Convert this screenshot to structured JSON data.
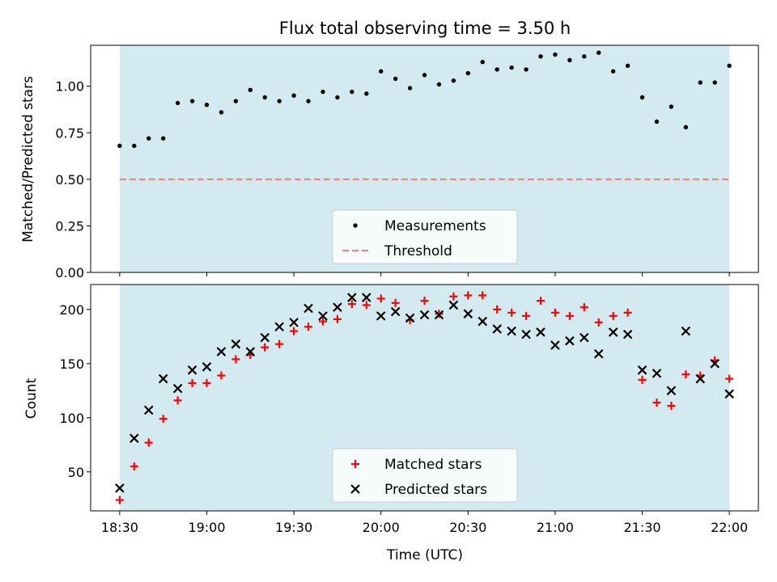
{
  "title": "Flux total observing time = 3.50 h",
  "chart_data": [
    {
      "type": "scatter",
      "panel": "top",
      "title": "Flux total observing time = 3.50 h",
      "ylabel": "Matched/Predicted stars",
      "xlabel": "",
      "xlim": [
        "18:20",
        "22:10"
      ],
      "ylim": [
        0,
        1.22
      ],
      "yticks": [
        0.0,
        0.25,
        0.5,
        0.75,
        1.0
      ],
      "ytick_labels": [
        "0.00",
        "0.25",
        "0.50",
        "0.75",
        "1.00"
      ],
      "shaded_span": [
        "18:30",
        "22:00"
      ],
      "legend": {
        "placement": "lower-center",
        "entries": [
          "Measurements",
          "Threshold"
        ]
      },
      "threshold": 0.5,
      "series": [
        {
          "name": "Measurements",
          "marker": "dot",
          "color": "#000000",
          "x": [
            "18:30",
            "18:35",
            "18:40",
            "18:45",
            "18:50",
            "18:55",
            "19:00",
            "19:05",
            "19:10",
            "19:15",
            "19:20",
            "19:25",
            "19:30",
            "19:35",
            "19:40",
            "19:45",
            "19:50",
            "19:55",
            "20:00",
            "20:05",
            "20:10",
            "20:15",
            "20:20",
            "20:25",
            "20:30",
            "20:35",
            "20:40",
            "20:45",
            "20:50",
            "20:55",
            "21:00",
            "21:05",
            "21:10",
            "21:15",
            "21:20",
            "21:25",
            "21:30",
            "21:35",
            "21:40",
            "21:45",
            "21:50",
            "21:55",
            "22:00"
          ],
          "y": [
            0.68,
            0.68,
            0.72,
            0.72,
            0.91,
            0.92,
            0.9,
            0.86,
            0.92,
            0.98,
            0.94,
            0.92,
            0.95,
            0.92,
            0.97,
            0.94,
            0.97,
            0.96,
            1.08,
            1.04,
            0.99,
            1.06,
            1.01,
            1.03,
            1.07,
            1.13,
            1.09,
            1.1,
            1.09,
            1.16,
            1.17,
            1.14,
            1.16,
            1.18,
            1.08,
            1.11,
            0.94,
            0.81,
            0.89,
            0.78,
            1.02,
            1.02,
            1.11
          ]
        },
        {
          "name": "Threshold",
          "style": "dashed",
          "color": "#f08080",
          "x": [
            "18:30",
            "22:00"
          ],
          "y": [
            0.5,
            0.5
          ]
        }
      ]
    },
    {
      "type": "scatter",
      "panel": "bottom",
      "xlabel": "Time (UTC)",
      "ylabel": "Count",
      "xlim": [
        "18:20",
        "22:10"
      ],
      "ylim": [
        14,
        223
      ],
      "xticks": [
        "18:30",
        "19:00",
        "19:30",
        "20:00",
        "20:30",
        "21:00",
        "21:30",
        "22:00"
      ],
      "yticks": [
        50,
        100,
        150,
        200
      ],
      "ytick_labels": [
        "50",
        "100",
        "150",
        "200"
      ],
      "shaded_span": [
        "18:30",
        "22:00"
      ],
      "legend": {
        "placement": "lower-center",
        "entries": [
          "Matched stars",
          "Predicted stars"
        ]
      },
      "series": [
        {
          "name": "Matched stars",
          "marker": "plus",
          "color": "#ff0000",
          "x": [
            "18:30",
            "18:35",
            "18:40",
            "18:45",
            "18:50",
            "18:55",
            "19:00",
            "19:05",
            "19:10",
            "19:15",
            "19:20",
            "19:25",
            "19:30",
            "19:35",
            "19:40",
            "19:45",
            "19:50",
            "19:55",
            "20:00",
            "20:05",
            "20:10",
            "20:15",
            "20:20",
            "20:25",
            "20:30",
            "20:35",
            "20:40",
            "20:45",
            "20:50",
            "20:55",
            "21:00",
            "21:05",
            "21:10",
            "21:15",
            "21:20",
            "21:25",
            "21:30",
            "21:35",
            "21:40",
            "21:45",
            "21:50",
            "21:55",
            "22:00"
          ],
          "y": [
            24,
            55,
            77,
            99,
            116,
            132,
            132,
            139,
            154,
            158,
            165,
            168,
            180,
            184,
            189,
            191,
            205,
            204,
            210,
            206,
            190,
            208,
            196,
            212,
            213,
            213,
            200,
            197,
            194,
            208,
            197,
            194,
            202,
            188,
            194,
            197,
            135,
            114,
            111,
            140,
            139,
            153,
            136
          ]
        },
        {
          "name": "Predicted stars",
          "marker": "x",
          "color": "#000000",
          "x": [
            "18:30",
            "18:35",
            "18:40",
            "18:45",
            "18:50",
            "18:55",
            "19:00",
            "19:05",
            "19:10",
            "19:15",
            "19:20",
            "19:25",
            "19:30",
            "19:35",
            "19:40",
            "19:45",
            "19:50",
            "19:55",
            "20:00",
            "20:05",
            "20:10",
            "20:15",
            "20:20",
            "20:25",
            "20:30",
            "20:35",
            "20:40",
            "20:45",
            "20:50",
            "20:55",
            "21:00",
            "21:05",
            "21:10",
            "21:15",
            "21:20",
            "21:25",
            "21:30",
            "21:35",
            "21:40",
            "21:45",
            "21:50",
            "21:55",
            "22:00"
          ],
          "y": [
            35,
            81,
            107,
            136,
            127,
            144,
            147,
            161,
            168,
            161,
            174,
            184,
            188,
            201,
            194,
            202,
            211,
            211,
            194,
            198,
            192,
            195,
            195,
            204,
            196,
            189,
            182,
            180,
            177,
            179,
            167,
            171,
            174,
            159,
            179,
            177,
            144,
            141,
            125,
            180,
            136,
            150,
            122
          ]
        }
      ]
    }
  ],
  "colors": {
    "span": "#d3eaf0",
    "threshold": "#f08080",
    "matched": "#ff0000",
    "predicted": "#000000",
    "measurement": "#000000"
  }
}
